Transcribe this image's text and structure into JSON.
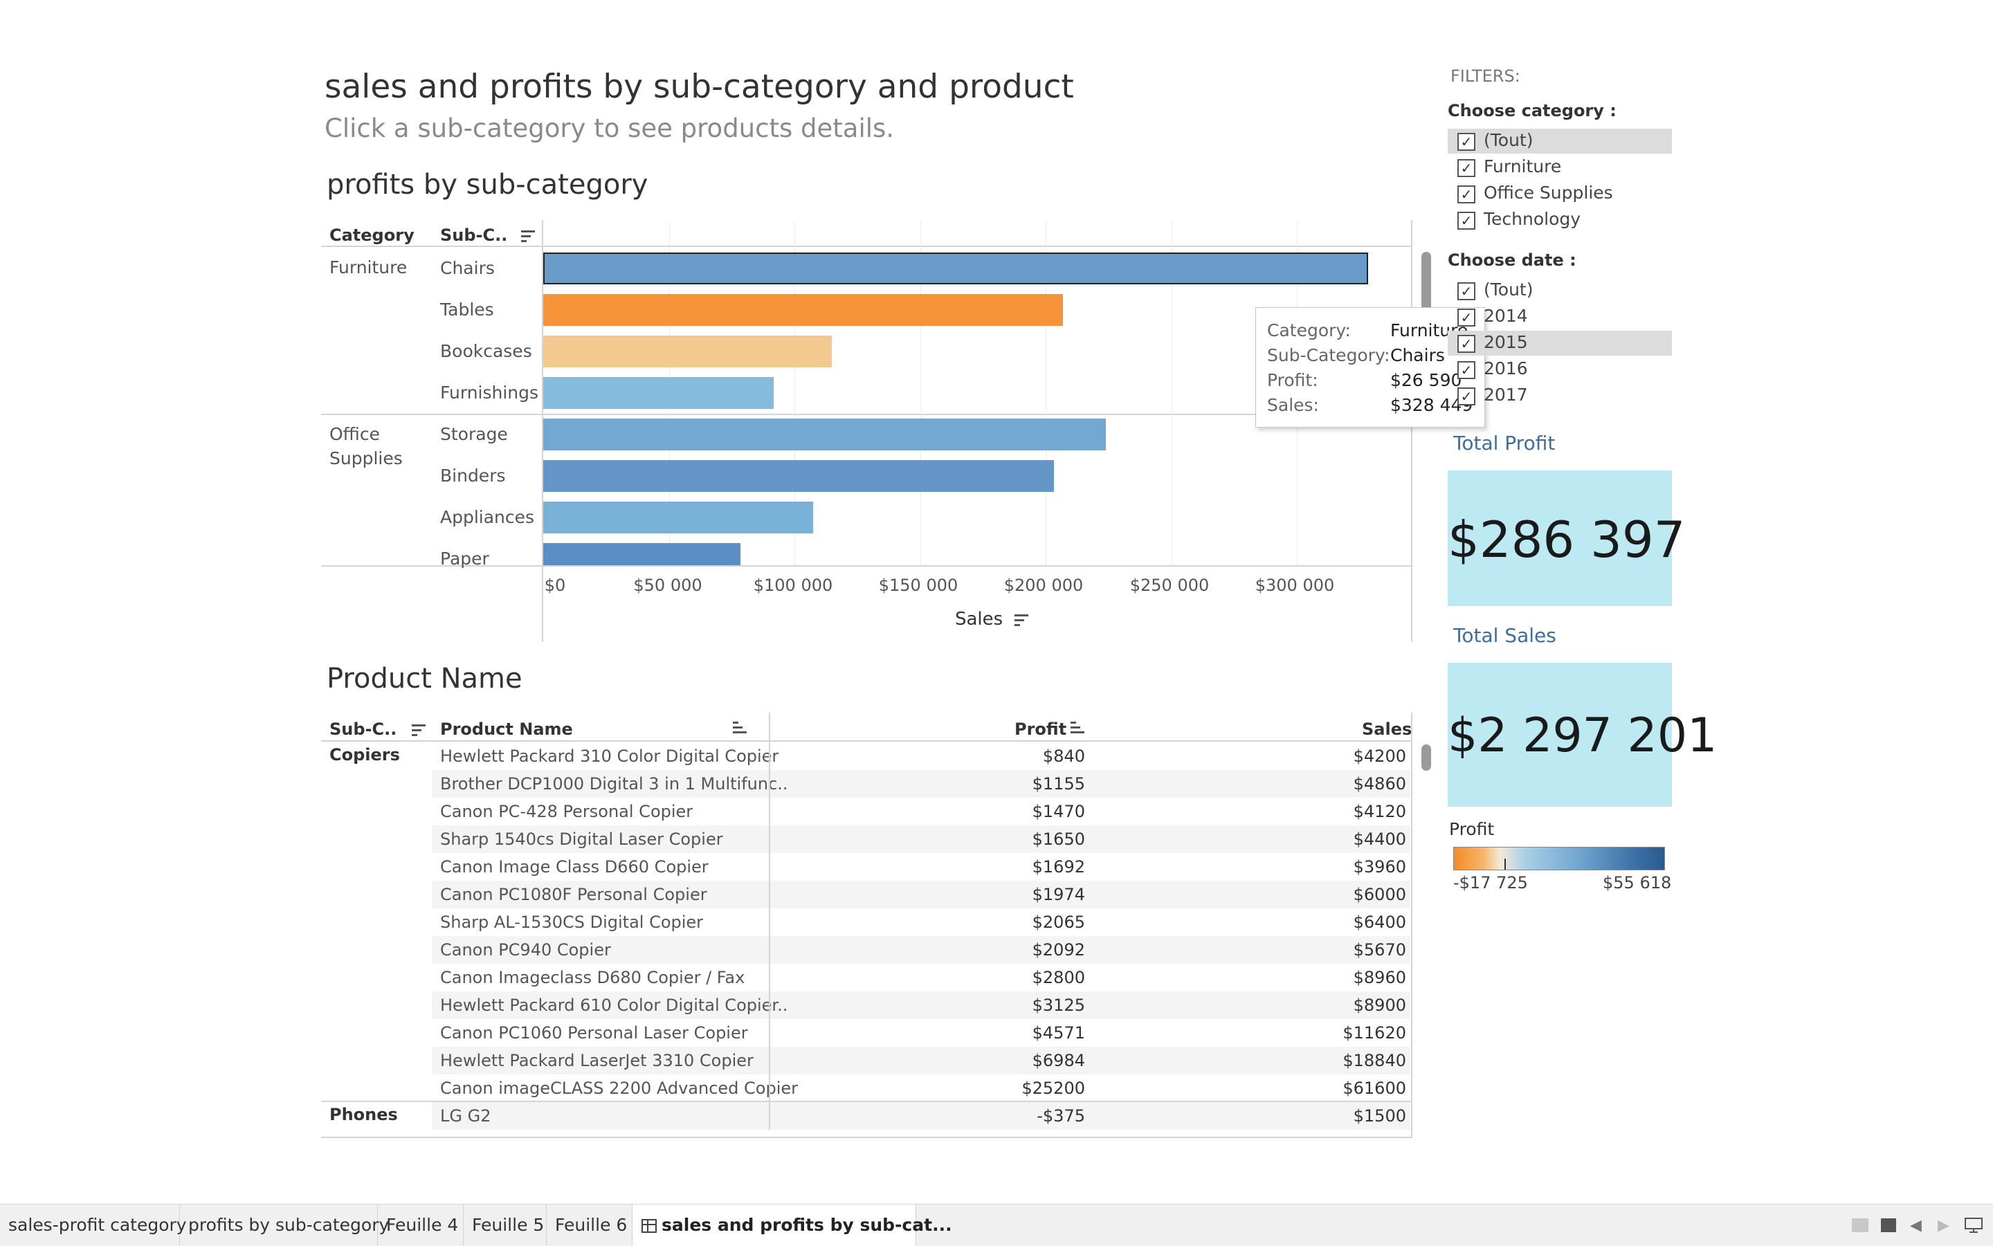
{
  "header": {
    "title": "sales and profits by sub-category and product",
    "subtitle": "Click a sub-category to see products details."
  },
  "chart": {
    "title": "profits by sub-category",
    "col_category": "Category",
    "col_subcategory": "Sub-C..",
    "xaxis_label": "Sales",
    "ticks": [
      "$0",
      "$50 000",
      "$100 000",
      "$150 000",
      "$200 000",
      "$250 000",
      "$300 000"
    ],
    "groups": [
      "Furniture",
      "Office Supplies"
    ]
  },
  "chart_data": {
    "type": "bar",
    "title": "profits by sub-category",
    "xlabel": "Sales",
    "xlim": [
      0,
      350000
    ],
    "categories": [
      "Chairs",
      "Tables",
      "Bookcases",
      "Furnishings",
      "Storage",
      "Binders",
      "Appliances",
      "Paper"
    ],
    "groups": [
      "Furniture",
      "Furniture",
      "Furniture",
      "Furniture",
      "Office Supplies",
      "Office Supplies",
      "Office Supplies",
      "Office Supplies"
    ],
    "values": [
      328449,
      206966,
      114880,
      91705,
      223844,
      203413,
      107532,
      78479
    ],
    "bar_colors": [
      "#6a9bc8",
      "#f69339",
      "#f4c98f",
      "#85bbdc",
      "#73a8d2",
      "#6497c8",
      "#7ab1d9",
      "#5b8fc3"
    ]
  },
  "tooltip": {
    "category_label": "Category:",
    "category_value": "Furniture",
    "subcategory_label": "Sub-Category:",
    "subcategory_value": "Chairs",
    "profit_label": "Profit:",
    "profit_value": "$26 590",
    "sales_label": "Sales:",
    "sales_value": "$328 449"
  },
  "table": {
    "title": "Product Name",
    "col_subcategory": "Sub-C..",
    "col_product": "Product Name",
    "col_profit": "Profit",
    "col_sales": "Sales",
    "group_copiers": "Copiers",
    "group_phones": "Phones",
    "rows": [
      {
        "name": "Hewlett Packard 310 Color Digital Copier",
        "profit": "$840",
        "sales": "$4200"
      },
      {
        "name": "Brother DCP1000 Digital 3 in 1 Multifunc..",
        "profit": "$1155",
        "sales": "$4860"
      },
      {
        "name": "Canon PC-428 Personal Copier",
        "profit": "$1470",
        "sales": "$4120"
      },
      {
        "name": "Sharp 1540cs Digital Laser Copier",
        "profit": "$1650",
        "sales": "$4400"
      },
      {
        "name": "Canon Image Class D660 Copier",
        "profit": "$1692",
        "sales": "$3960"
      },
      {
        "name": "Canon PC1080F Personal Copier",
        "profit": "$1974",
        "sales": "$6000"
      },
      {
        "name": "Sharp AL-1530CS Digital Copier",
        "profit": "$2065",
        "sales": "$6400"
      },
      {
        "name": "Canon PC940 Copier",
        "profit": "$2092",
        "sales": "$5670"
      },
      {
        "name": "Canon Imageclass D680 Copier / Fax",
        "profit": "$2800",
        "sales": "$8960"
      },
      {
        "name": "Hewlett Packard 610 Color Digital Copier..",
        "profit": "$3125",
        "sales": "$8900"
      },
      {
        "name": "Canon PC1060 Personal Laser Copier",
        "profit": "$4571",
        "sales": "$11620"
      },
      {
        "name": "Hewlett Packard LaserJet 3310 Copier",
        "profit": "$6984",
        "sales": "$18840"
      },
      {
        "name": "Canon imageCLASS 2200 Advanced Copier",
        "profit": "$25200",
        "sales": "$61600"
      },
      {
        "name": "LG G2",
        "profit": "-$375",
        "sales": "$1500"
      }
    ]
  },
  "filters": {
    "title": "FILTERS:",
    "category_title": "Choose category :",
    "category_options": [
      "(Tout)",
      "Furniture",
      "Office Supplies",
      "Technology"
    ],
    "date_title": "Choose date :",
    "date_options": [
      "(Tout)",
      "2014",
      "2015",
      "2016",
      "2017"
    ]
  },
  "kpi": {
    "profit_title": "Total Profit",
    "profit_value": "$286 397",
    "sales_title": "Total Sales",
    "sales_value": "$2 297 201"
  },
  "legend": {
    "title": "Profit",
    "min": "-$17 725",
    "max": "$55 618"
  },
  "tabs": [
    "sales-profit category",
    "profits by sub-category",
    "Feuille 4",
    "Feuille 5",
    "Feuille 6",
    "sales and profits by sub-cat..."
  ],
  "colors": {
    "kpi_background": "#bde9f2",
    "kpi_title": "#3c6e9f",
    "selection": "#dcdcdc"
  }
}
